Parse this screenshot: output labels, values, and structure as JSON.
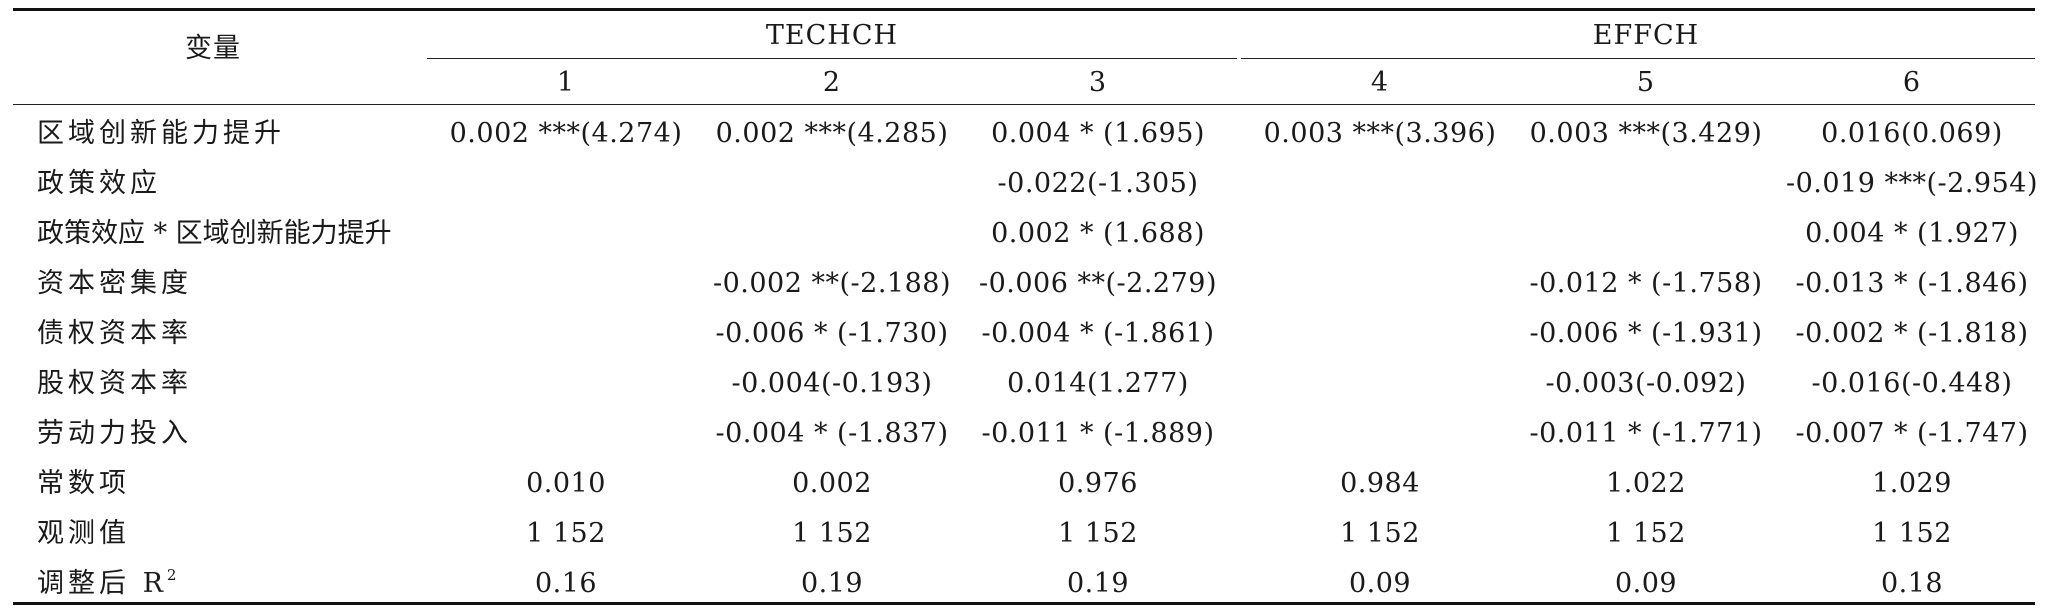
{
  "header": {
    "variable_label": "变量",
    "group_techch": "TECHCH",
    "group_effch": "EFFCH",
    "columns": [
      "1",
      "2",
      "3",
      "4",
      "5",
      "6"
    ]
  },
  "rows": [
    {
      "label": "区域创新能力提升",
      "cells": [
        "0.002 ***(4.274)",
        "0.002 ***(4.285)",
        "0.004 * (1.695)",
        "0.003 ***(3.396)",
        "0.003 ***(3.429)",
        "0.016(0.069)"
      ]
    },
    {
      "label": "政策效应",
      "cells": [
        "",
        "",
        "-0.022(-1.305)",
        "",
        "",
        "-0.019 ***(-2.954)"
      ]
    },
    {
      "label": "政策效应 * 区域创新能力提升",
      "cells": [
        "",
        "",
        "0.002 * (1.688)",
        "",
        "",
        "0.004 * (1.927)"
      ]
    },
    {
      "label": "资本密集度",
      "cells": [
        "",
        "-0.002 **(-2.188)",
        "-0.006 **(-2.279)",
        "",
        "-0.012 * (-1.758)",
        "-0.013 * (-1.846)"
      ]
    },
    {
      "label": "债权资本率",
      "cells": [
        "",
        "-0.006 * (-1.730)",
        "-0.004 * (-1.861)",
        "",
        "-0.006 * (-1.931)",
        "-0.002 * (-1.818)"
      ]
    },
    {
      "label": "股权资本率",
      "cells": [
        "",
        "-0.004(-0.193)",
        "0.014(1.277)",
        "",
        "-0.003(-0.092)",
        "-0.016(-0.448)"
      ]
    },
    {
      "label": "劳动力投入",
      "cells": [
        "",
        "-0.004 * (-1.837)",
        "-0.011 * (-1.889)",
        "",
        "-0.011 * (-1.771)",
        "-0.007 * (-1.747)"
      ]
    },
    {
      "label": "常数项",
      "cells": [
        "0.010",
        "0.002",
        "0.976",
        "0.984",
        "1.022",
        "1.029"
      ]
    },
    {
      "label": "观测值",
      "cells": [
        "1 152",
        "1 152",
        "1 152",
        "1 152",
        "1 152",
        "1 152"
      ]
    },
    {
      "label": "调整后 R",
      "label_sup": "2",
      "cells": [
        "0.16",
        "0.19",
        "0.19",
        "0.09",
        "0.09",
        "0.18"
      ]
    }
  ]
}
